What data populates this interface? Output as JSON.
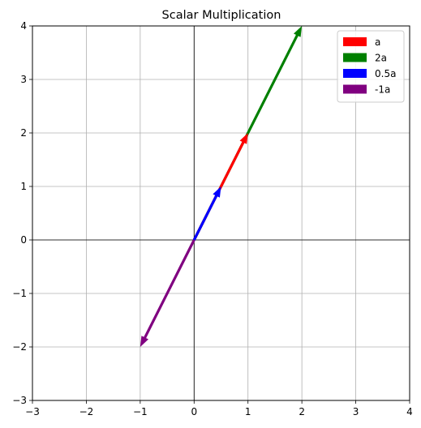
{
  "chart_data": {
    "type": "quiver",
    "title": "Scalar Multiplication",
    "xlabel": "",
    "ylabel": "",
    "xlim": [
      -3,
      4
    ],
    "ylim": [
      -3,
      4
    ],
    "xticks": [
      -3,
      -2,
      -1,
      0,
      1,
      2,
      3,
      4
    ],
    "yticks": [
      -3,
      -2,
      -1,
      0,
      1,
      2,
      3,
      4
    ],
    "xtick_labels": [
      "−3",
      "−2",
      "−1",
      "0",
      "1",
      "2",
      "3",
      "4"
    ],
    "ytick_labels": [
      "−3",
      "−2",
      "−1",
      "0",
      "1",
      "2",
      "3",
      "4"
    ],
    "grid": true,
    "axes_lines_through_origin": true,
    "legend_position": "top-right",
    "series": [
      {
        "name": "a",
        "color": "#ff0000",
        "start": [
          0,
          0
        ],
        "end": [
          1,
          2
        ]
      },
      {
        "name": "2a",
        "color": "#008000",
        "start": [
          0,
          0
        ],
        "end": [
          2,
          4
        ]
      },
      {
        "name": "0.5a",
        "color": "#0000ff",
        "start": [
          0,
          0
        ],
        "end": [
          0.5,
          1
        ]
      },
      {
        "name": "-1a",
        "color": "#800080",
        "start": [
          0,
          0
        ],
        "end": [
          -1,
          -2
        ]
      }
    ]
  }
}
